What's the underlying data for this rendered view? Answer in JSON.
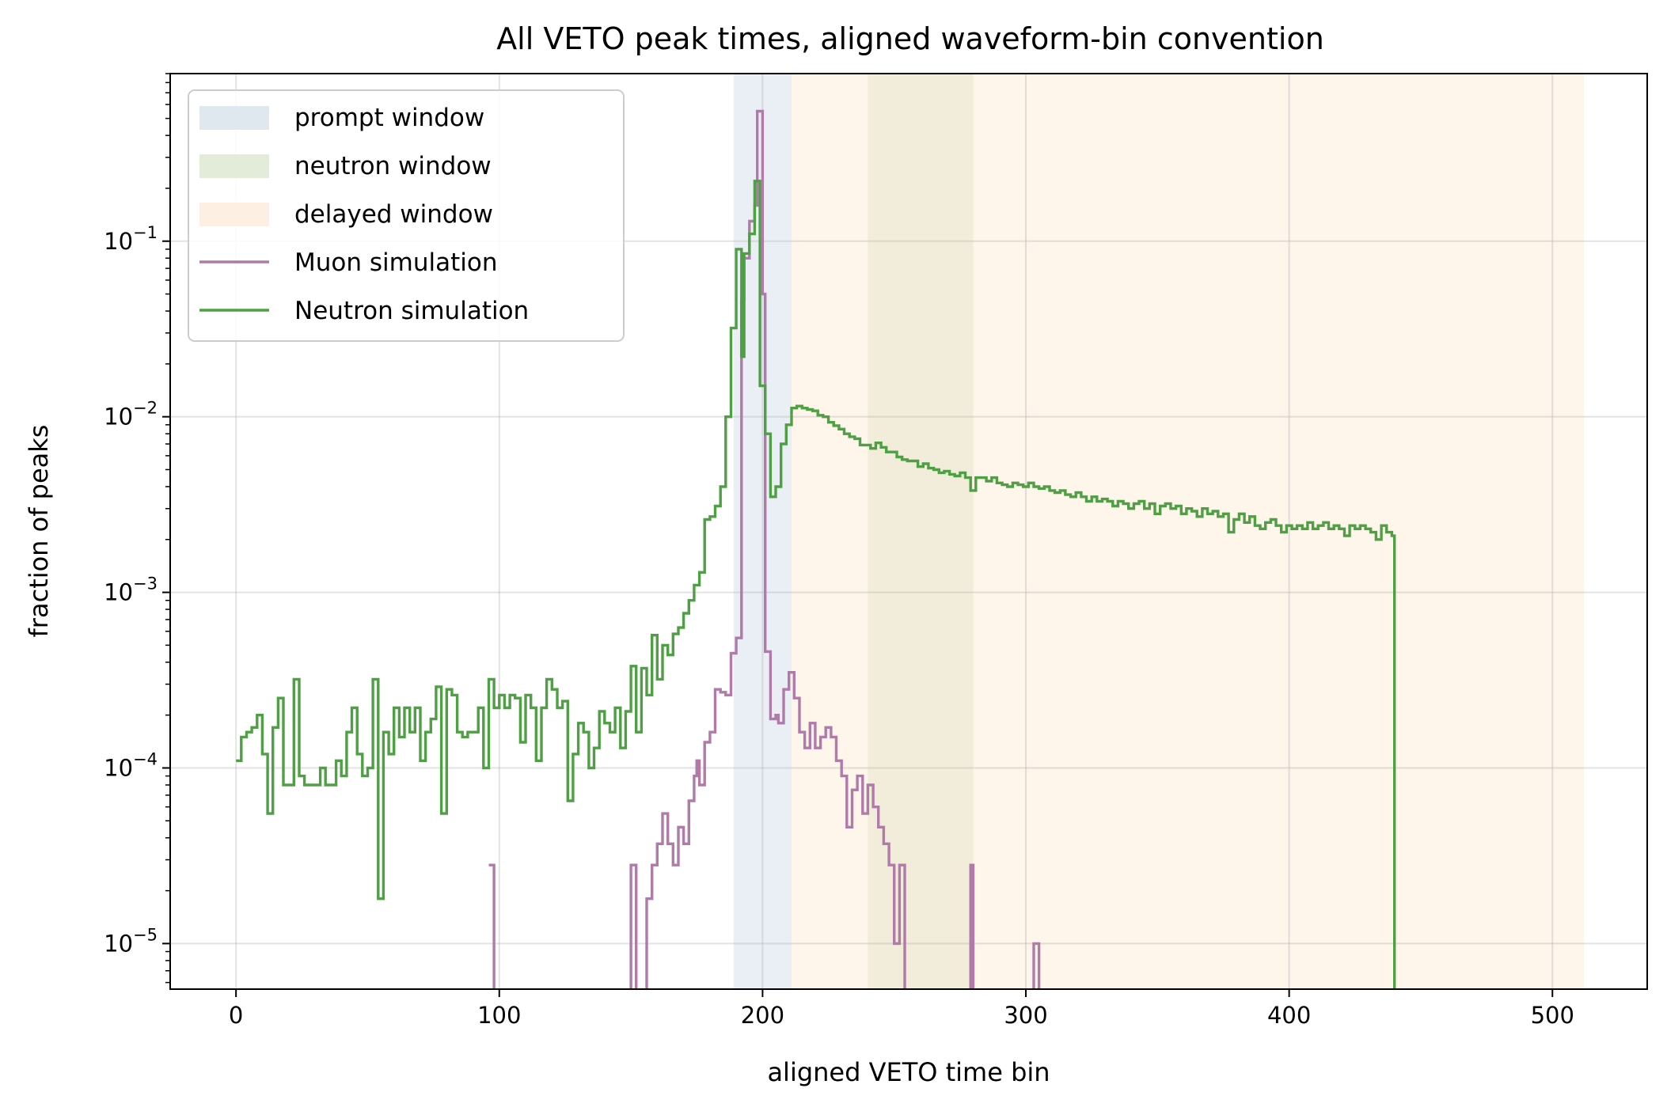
{
  "chart_data": {
    "type": "line",
    "step": true,
    "title": "All VETO peak times, aligned waveform-bin convention",
    "xlabel": "aligned VETO time bin",
    "ylabel": "fraction of peaks",
    "xlim": [
      -25,
      536
    ],
    "ylim": [
      5.5e-06,
      0.9
    ],
    "y_scale": "log",
    "grid": true,
    "legend_position": "top-left",
    "x_ticks": [
      0,
      100,
      200,
      300,
      400,
      500
    ],
    "y_ticks": [
      {
        "value": 1e-05,
        "base": "10",
        "exp": "−5"
      },
      {
        "value": 0.0001,
        "base": "10",
        "exp": "−4"
      },
      {
        "value": 0.001,
        "base": "10",
        "exp": "−3"
      },
      {
        "value": 0.01,
        "base": "10",
        "exp": "−2"
      },
      {
        "value": 0.1,
        "base": "10",
        "exp": "−1"
      }
    ],
    "windows": [
      {
        "name": "prompt window",
        "x0": 189,
        "x1": 211,
        "color": "#dfe7ef",
        "opacity": 0.65
      },
      {
        "name": "neutron window",
        "x0": 240,
        "x1": 280,
        "color": "#d6e3c8",
        "opacity": 0.55
      },
      {
        "name": "delayed window",
        "x0": 211,
        "x1": 512,
        "color": "#fde9d2",
        "opacity": 0.45
      }
    ],
    "series": [
      {
        "name": "Muon simulation",
        "color": "#b07aa9",
        "points": [
          [
            96,
            2.8e-05
          ],
          [
            97,
            2.8e-05
          ],
          [
            98,
            4e-06
          ],
          [
            149,
            4e-06
          ],
          [
            150,
            2.8e-05
          ],
          [
            152,
            4e-06
          ],
          [
            155,
            4e-06
          ],
          [
            156,
            1.8e-05
          ],
          [
            158,
            2.8e-05
          ],
          [
            160,
            3.7e-05
          ],
          [
            162,
            5.5e-05
          ],
          [
            164,
            3.7e-05
          ],
          [
            166,
            2.8e-05
          ],
          [
            168,
            4.6e-05
          ],
          [
            170,
            3.7e-05
          ],
          [
            172,
            6.5e-05
          ],
          [
            174,
            9e-05
          ],
          [
            175,
            0.00011
          ],
          [
            176,
            8e-05
          ],
          [
            178,
            0.00014
          ],
          [
            180,
            0.00016
          ],
          [
            182,
            0.00028
          ],
          [
            184,
            0.00027
          ],
          [
            186,
            0.00026
          ],
          [
            188,
            0.00045
          ],
          [
            190,
            0.00055
          ],
          [
            192,
            0.046
          ],
          [
            193,
            0.08
          ],
          [
            195,
            0.13
          ],
          [
            197,
            0.16
          ],
          [
            198,
            0.55
          ],
          [
            200,
            0.05
          ],
          [
            201,
            0.00046
          ],
          [
            203,
            0.00019
          ],
          [
            205,
            0.0002
          ],
          [
            206,
            0.00018
          ],
          [
            208,
            0.00028
          ],
          [
            210,
            0.00035
          ],
          [
            212,
            0.00025
          ],
          [
            214,
            0.00016
          ],
          [
            216,
            0.00013
          ],
          [
            218,
            0.00018
          ],
          [
            220,
            0.00013
          ],
          [
            222,
            0.00015
          ],
          [
            224,
            0.00017
          ],
          [
            226,
            0.00015
          ],
          [
            228,
            0.00011
          ],
          [
            230,
            9e-05
          ],
          [
            232,
            4.6e-05
          ],
          [
            234,
            7.5e-05
          ],
          [
            236,
            9e-05
          ],
          [
            238,
            5.5e-05
          ],
          [
            240,
            8e-05
          ],
          [
            242,
            6e-05
          ],
          [
            244,
            4.6e-05
          ],
          [
            246,
            3.7e-05
          ],
          [
            248,
            2.8e-05
          ],
          [
            250,
            1e-05
          ],
          [
            252,
            2.8e-05
          ],
          [
            254,
            4e-06
          ],
          [
            278,
            4e-06
          ],
          [
            279,
            2.8e-05
          ],
          [
            280,
            4e-06
          ],
          [
            302,
            4e-06
          ],
          [
            303,
            1e-05
          ],
          [
            305,
            4e-06
          ]
        ]
      },
      {
        "name": "Neutron simulation",
        "color": "#4f9f45",
        "points": [
          [
            0,
            0.00011
          ],
          [
            2,
            0.00015
          ],
          [
            4,
            0.00016
          ],
          [
            6,
            0.00017
          ],
          [
            8,
            0.0002
          ],
          [
            10,
            0.00012
          ],
          [
            12,
            5.5e-05
          ],
          [
            14,
            0.00017
          ],
          [
            16,
            0.00025
          ],
          [
            18,
            8e-05
          ],
          [
            20,
            8e-05
          ],
          [
            22,
            0.00032
          ],
          [
            24,
            9e-05
          ],
          [
            26,
            8e-05
          ],
          [
            28,
            8e-05
          ],
          [
            30,
            8e-05
          ],
          [
            32,
            0.0001
          ],
          [
            34,
            8e-05
          ],
          [
            36,
            8e-05
          ],
          [
            38,
            0.00011
          ],
          [
            40,
            9e-05
          ],
          [
            42,
            0.00016
          ],
          [
            44,
            0.00022
          ],
          [
            46,
            0.00012
          ],
          [
            48,
            9e-05
          ],
          [
            50,
            0.0001
          ],
          [
            52,
            0.00032
          ],
          [
            54,
            1.8e-05
          ],
          [
            56,
            0.00016
          ],
          [
            58,
            0.00012
          ],
          [
            60,
            0.00022
          ],
          [
            62,
            0.00015
          ],
          [
            64,
            0.00022
          ],
          [
            66,
            0.00016
          ],
          [
            68,
            0.00022
          ],
          [
            70,
            0.00011
          ],
          [
            72,
            0.00016
          ],
          [
            74,
            0.00019
          ],
          [
            76,
            0.00029
          ],
          [
            78,
            5.5e-05
          ],
          [
            80,
            0.00028
          ],
          [
            82,
            0.00026
          ],
          [
            84,
            0.00016
          ],
          [
            86,
            0.00015
          ],
          [
            88,
            0.00016
          ],
          [
            90,
            0.00016
          ],
          [
            92,
            0.00022
          ],
          [
            94,
            0.0001
          ],
          [
            96,
            0.00032
          ],
          [
            98,
            0.00022
          ],
          [
            100,
            0.00026
          ],
          [
            102,
            0.00022
          ],
          [
            104,
            0.00026
          ],
          [
            106,
            0.00025
          ],
          [
            108,
            0.00014
          ],
          [
            110,
            0.00026
          ],
          [
            112,
            0.00022
          ],
          [
            114,
            0.00011
          ],
          [
            116,
            0.00022
          ],
          [
            118,
            0.00032
          ],
          [
            120,
            0.00028
          ],
          [
            122,
            0.00022
          ],
          [
            124,
            0.00024
          ],
          [
            126,
            6.5e-05
          ],
          [
            128,
            0.00012
          ],
          [
            130,
            0.00018
          ],
          [
            132,
            0.00016
          ],
          [
            134,
            0.0001
          ],
          [
            136,
            0.00013
          ],
          [
            138,
            0.00021
          ],
          [
            140,
            0.00018
          ],
          [
            142,
            0.00016
          ],
          [
            144,
            0.00022
          ],
          [
            146,
            0.00013
          ],
          [
            148,
            0.00021
          ],
          [
            150,
            0.00038
          ],
          [
            152,
            0.00016
          ],
          [
            154,
            0.00037
          ],
          [
            156,
            0.00026
          ],
          [
            158,
            0.00057
          ],
          [
            160,
            0.00032
          ],
          [
            162,
            0.0005
          ],
          [
            164,
            0.00044
          ],
          [
            166,
            0.00058
          ],
          [
            168,
            0.00063
          ],
          [
            170,
            0.00076
          ],
          [
            172,
            0.0009
          ],
          [
            174,
            0.0011
          ],
          [
            176,
            0.0013
          ],
          [
            178,
            0.0026
          ],
          [
            180,
            0.0027
          ],
          [
            182,
            0.0031
          ],
          [
            184,
            0.004
          ],
          [
            186,
            0.01
          ],
          [
            188,
            0.032
          ],
          [
            190,
            0.09
          ],
          [
            192,
            0.022
          ],
          [
            193,
            0.085
          ],
          [
            195,
            0.11
          ],
          [
            197,
            0.22
          ],
          [
            199,
            0.015
          ],
          [
            201,
            0.008
          ],
          [
            203,
            0.0035
          ],
          [
            205,
            0.004
          ],
          [
            207,
            0.007
          ],
          [
            209,
            0.009
          ],
          [
            211,
            0.0112
          ],
          [
            213,
            0.0115
          ],
          [
            215,
            0.0112
          ],
          [
            217,
            0.011
          ],
          [
            219,
            0.0108
          ],
          [
            221,
            0.0102
          ],
          [
            223,
            0.01
          ],
          [
            225,
            0.0093
          ],
          [
            227,
            0.0089
          ],
          [
            229,
            0.0085
          ],
          [
            231,
            0.008
          ],
          [
            233,
            0.0077
          ],
          [
            235,
            0.0075
          ],
          [
            237,
            0.0069
          ],
          [
            239,
            0.0069
          ],
          [
            241,
            0.0066
          ],
          [
            243,
            0.0071
          ],
          [
            245,
            0.0067
          ],
          [
            247,
            0.0063
          ],
          [
            249,
            0.0063
          ],
          [
            251,
            0.0059
          ],
          [
            253,
            0.0057
          ],
          [
            255,
            0.0056
          ],
          [
            257,
            0.0056
          ],
          [
            259,
            0.0052
          ],
          [
            261,
            0.0054
          ],
          [
            263,
            0.0051
          ],
          [
            265,
            0.005
          ],
          [
            267,
            0.0048
          ],
          [
            269,
            0.0049
          ],
          [
            271,
            0.0047
          ],
          [
            273,
            0.0046
          ],
          [
            275,
            0.0048
          ],
          [
            277,
            0.0045
          ],
          [
            279,
            0.0038
          ],
          [
            281,
            0.0045
          ],
          [
            283,
            0.0045
          ],
          [
            285,
            0.0043
          ],
          [
            287,
            0.0045
          ],
          [
            289,
            0.0042
          ],
          [
            291,
            0.0041
          ],
          [
            293,
            0.004
          ],
          [
            295,
            0.0042
          ],
          [
            297,
            0.0041
          ],
          [
            299,
            0.004
          ],
          [
            301,
            0.0042
          ],
          [
            303,
            0.004
          ],
          [
            305,
            0.0039
          ],
          [
            307,
            0.004
          ],
          [
            309,
            0.0038
          ],
          [
            311,
            0.0037
          ],
          [
            313,
            0.0038
          ],
          [
            315,
            0.0036
          ],
          [
            317,
            0.0035
          ],
          [
            319,
            0.0037
          ],
          [
            321,
            0.0035
          ],
          [
            323,
            0.0033
          ],
          [
            325,
            0.0035
          ],
          [
            327,
            0.0033
          ],
          [
            329,
            0.0034
          ],
          [
            331,
            0.0033
          ],
          [
            333,
            0.0031
          ],
          [
            335,
            0.0033
          ],
          [
            337,
            0.0032
          ],
          [
            339,
            0.003
          ],
          [
            341,
            0.0032
          ],
          [
            343,
            0.0033
          ],
          [
            345,
            0.003
          ],
          [
            347,
            0.0032
          ],
          [
            349,
            0.0028
          ],
          [
            351,
            0.0031
          ],
          [
            353,
            0.0032
          ],
          [
            355,
            0.003
          ],
          [
            357,
            0.0031
          ],
          [
            359,
            0.0028
          ],
          [
            361,
            0.003
          ],
          [
            363,
            0.0029
          ],
          [
            365,
            0.0027
          ],
          [
            367,
            0.003
          ],
          [
            369,
            0.0028
          ],
          [
            371,
            0.0029
          ],
          [
            373,
            0.0027
          ],
          [
            375,
            0.0028
          ],
          [
            377,
            0.0022
          ],
          [
            379,
            0.0026
          ],
          [
            381,
            0.0028
          ],
          [
            383,
            0.0025
          ],
          [
            385,
            0.0027
          ],
          [
            387,
            0.0024
          ],
          [
            389,
            0.0023
          ],
          [
            391,
            0.0025
          ],
          [
            393,
            0.0026
          ],
          [
            395,
            0.0024
          ],
          [
            397,
            0.0022
          ],
          [
            399,
            0.0024
          ],
          [
            401,
            0.0023
          ],
          [
            403,
            0.0024
          ],
          [
            405,
            0.0023
          ],
          [
            407,
            0.0025
          ],
          [
            409,
            0.0023
          ],
          [
            411,
            0.0024
          ],
          [
            413,
            0.0025
          ],
          [
            415,
            0.0023
          ],
          [
            417,
            0.0024
          ],
          [
            419,
            0.0023
          ],
          [
            421,
            0.0021
          ],
          [
            423,
            0.0024
          ],
          [
            425,
            0.0023
          ],
          [
            427,
            0.0024
          ],
          [
            429,
            0.0023
          ],
          [
            431,
            0.0022
          ],
          [
            433,
            0.002
          ],
          [
            435,
            0.0024
          ],
          [
            437,
            0.0022
          ],
          [
            439,
            0.0021
          ],
          [
            440,
            4e-06
          ]
        ]
      }
    ]
  },
  "legend": {
    "items": [
      {
        "label": "prompt window",
        "kind": "patch",
        "color": "#dfe7ef"
      },
      {
        "label": "neutron window",
        "kind": "patch",
        "color": "#e3ecd9"
      },
      {
        "label": "delayed window",
        "kind": "patch",
        "color": "#fdf0e2"
      },
      {
        "label": "Muon simulation",
        "kind": "line",
        "color": "#b07aa9"
      },
      {
        "label": "Neutron simulation",
        "kind": "line",
        "color": "#4f9f45"
      }
    ]
  }
}
